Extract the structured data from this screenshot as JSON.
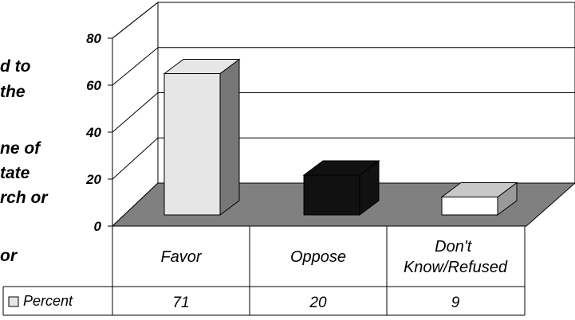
{
  "question_fragments": [
    "d to",
    "the",
    "",
    "ne of",
    "tate",
    "rch or",
    "",
    "or"
  ],
  "chart_data": {
    "type": "bar",
    "categories": [
      "Favor",
      "Oppose",
      "Don't\nKnow/Refused"
    ],
    "series": [
      {
        "name": "Percent",
        "values": [
          71,
          20,
          9
        ]
      }
    ],
    "yticks": [
      0,
      20,
      40,
      60,
      80
    ],
    "ylim": [
      0,
      80
    ],
    "grid": true,
    "legend": "data-table",
    "colors": {
      "floor": "#808080",
      "favor_front": "#e6e6e6",
      "favor_side": "#777777",
      "oppose": "#111111",
      "dk_front": "#ffffff",
      "dk_top": "#c8c8c8",
      "dk_side": "#9a9a9a"
    }
  }
}
